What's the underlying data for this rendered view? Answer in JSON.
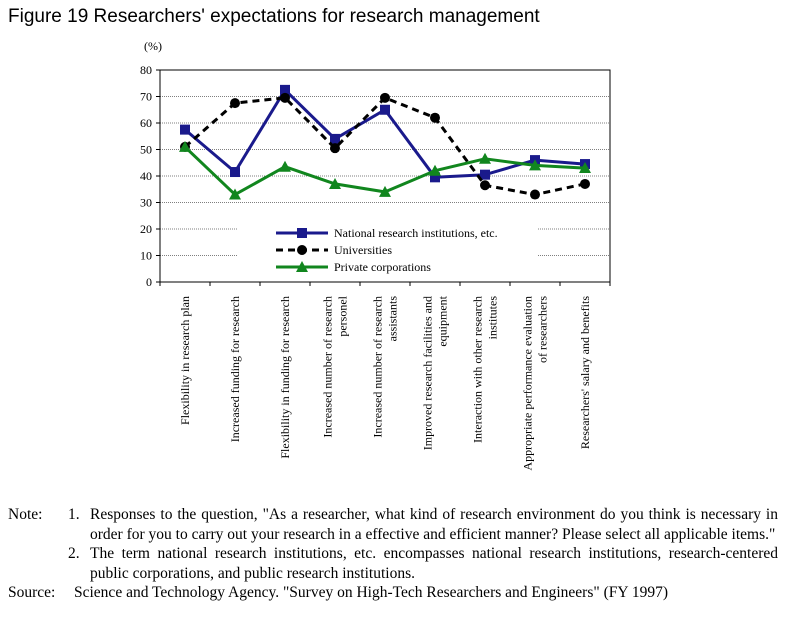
{
  "figure_title": "Figure 19 Researchers' expectations for research management",
  "notes": {
    "label": "Note:",
    "items": [
      {
        "num": "1.",
        "text": "Responses to the question, \"As a researcher, what kind of research environment do you think is necessary in order for you to carry out your research in a effective and efficient manner? Please select all applicable items.\""
      },
      {
        "num": "2.",
        "text": "The term national research institutions, etc. encompasses national research institutions, research-centered public corporations, and public research institutions."
      }
    ]
  },
  "source": {
    "label": "Source:",
    "text": "Science and Technology Agency. \"Survey on High-Tech Researchers and Engineers\" (FY 1997)"
  },
  "chart_data": {
    "type": "line",
    "ylabel": "(%)",
    "ylim": [
      0,
      80
    ],
    "yticks": [
      0,
      10,
      20,
      30,
      40,
      50,
      60,
      70,
      80
    ],
    "grid": true,
    "legend_position": "lower-right",
    "categories": [
      [
        "Flexibility in research plan"
      ],
      [
        "Increased funding for research"
      ],
      [
        "Flexibility in funding for research"
      ],
      [
        "Increased number of research",
        "personel"
      ],
      [
        "Increased number of research",
        "assistants"
      ],
      [
        "Improved research facilities and",
        "equipment"
      ],
      [
        "Interaction with other research",
        "institutes"
      ],
      [
        "Appropriate performance evaluation",
        "of researchers"
      ],
      [
        "Researchers' salary and benefits"
      ]
    ],
    "series": [
      {
        "name": "National research institutions, etc.",
        "color": "#1a1a8c",
        "marker": "square",
        "dash": "solid",
        "values": [
          57.5,
          41.5,
          72.5,
          54,
          65,
          39.5,
          40.5,
          46,
          44.5
        ]
      },
      {
        "name": "Universities",
        "color": "#000000",
        "marker": "circle",
        "dash": "dashed",
        "values": [
          51,
          67.5,
          69.5,
          50.5,
          69.5,
          62,
          36.5,
          33,
          37
        ]
      },
      {
        "name": "Private corporations",
        "color": "#11861e",
        "marker": "triangle",
        "dash": "solid",
        "values": [
          51,
          33,
          43.5,
          37,
          34,
          42,
          46.5,
          44,
          43
        ]
      }
    ]
  }
}
